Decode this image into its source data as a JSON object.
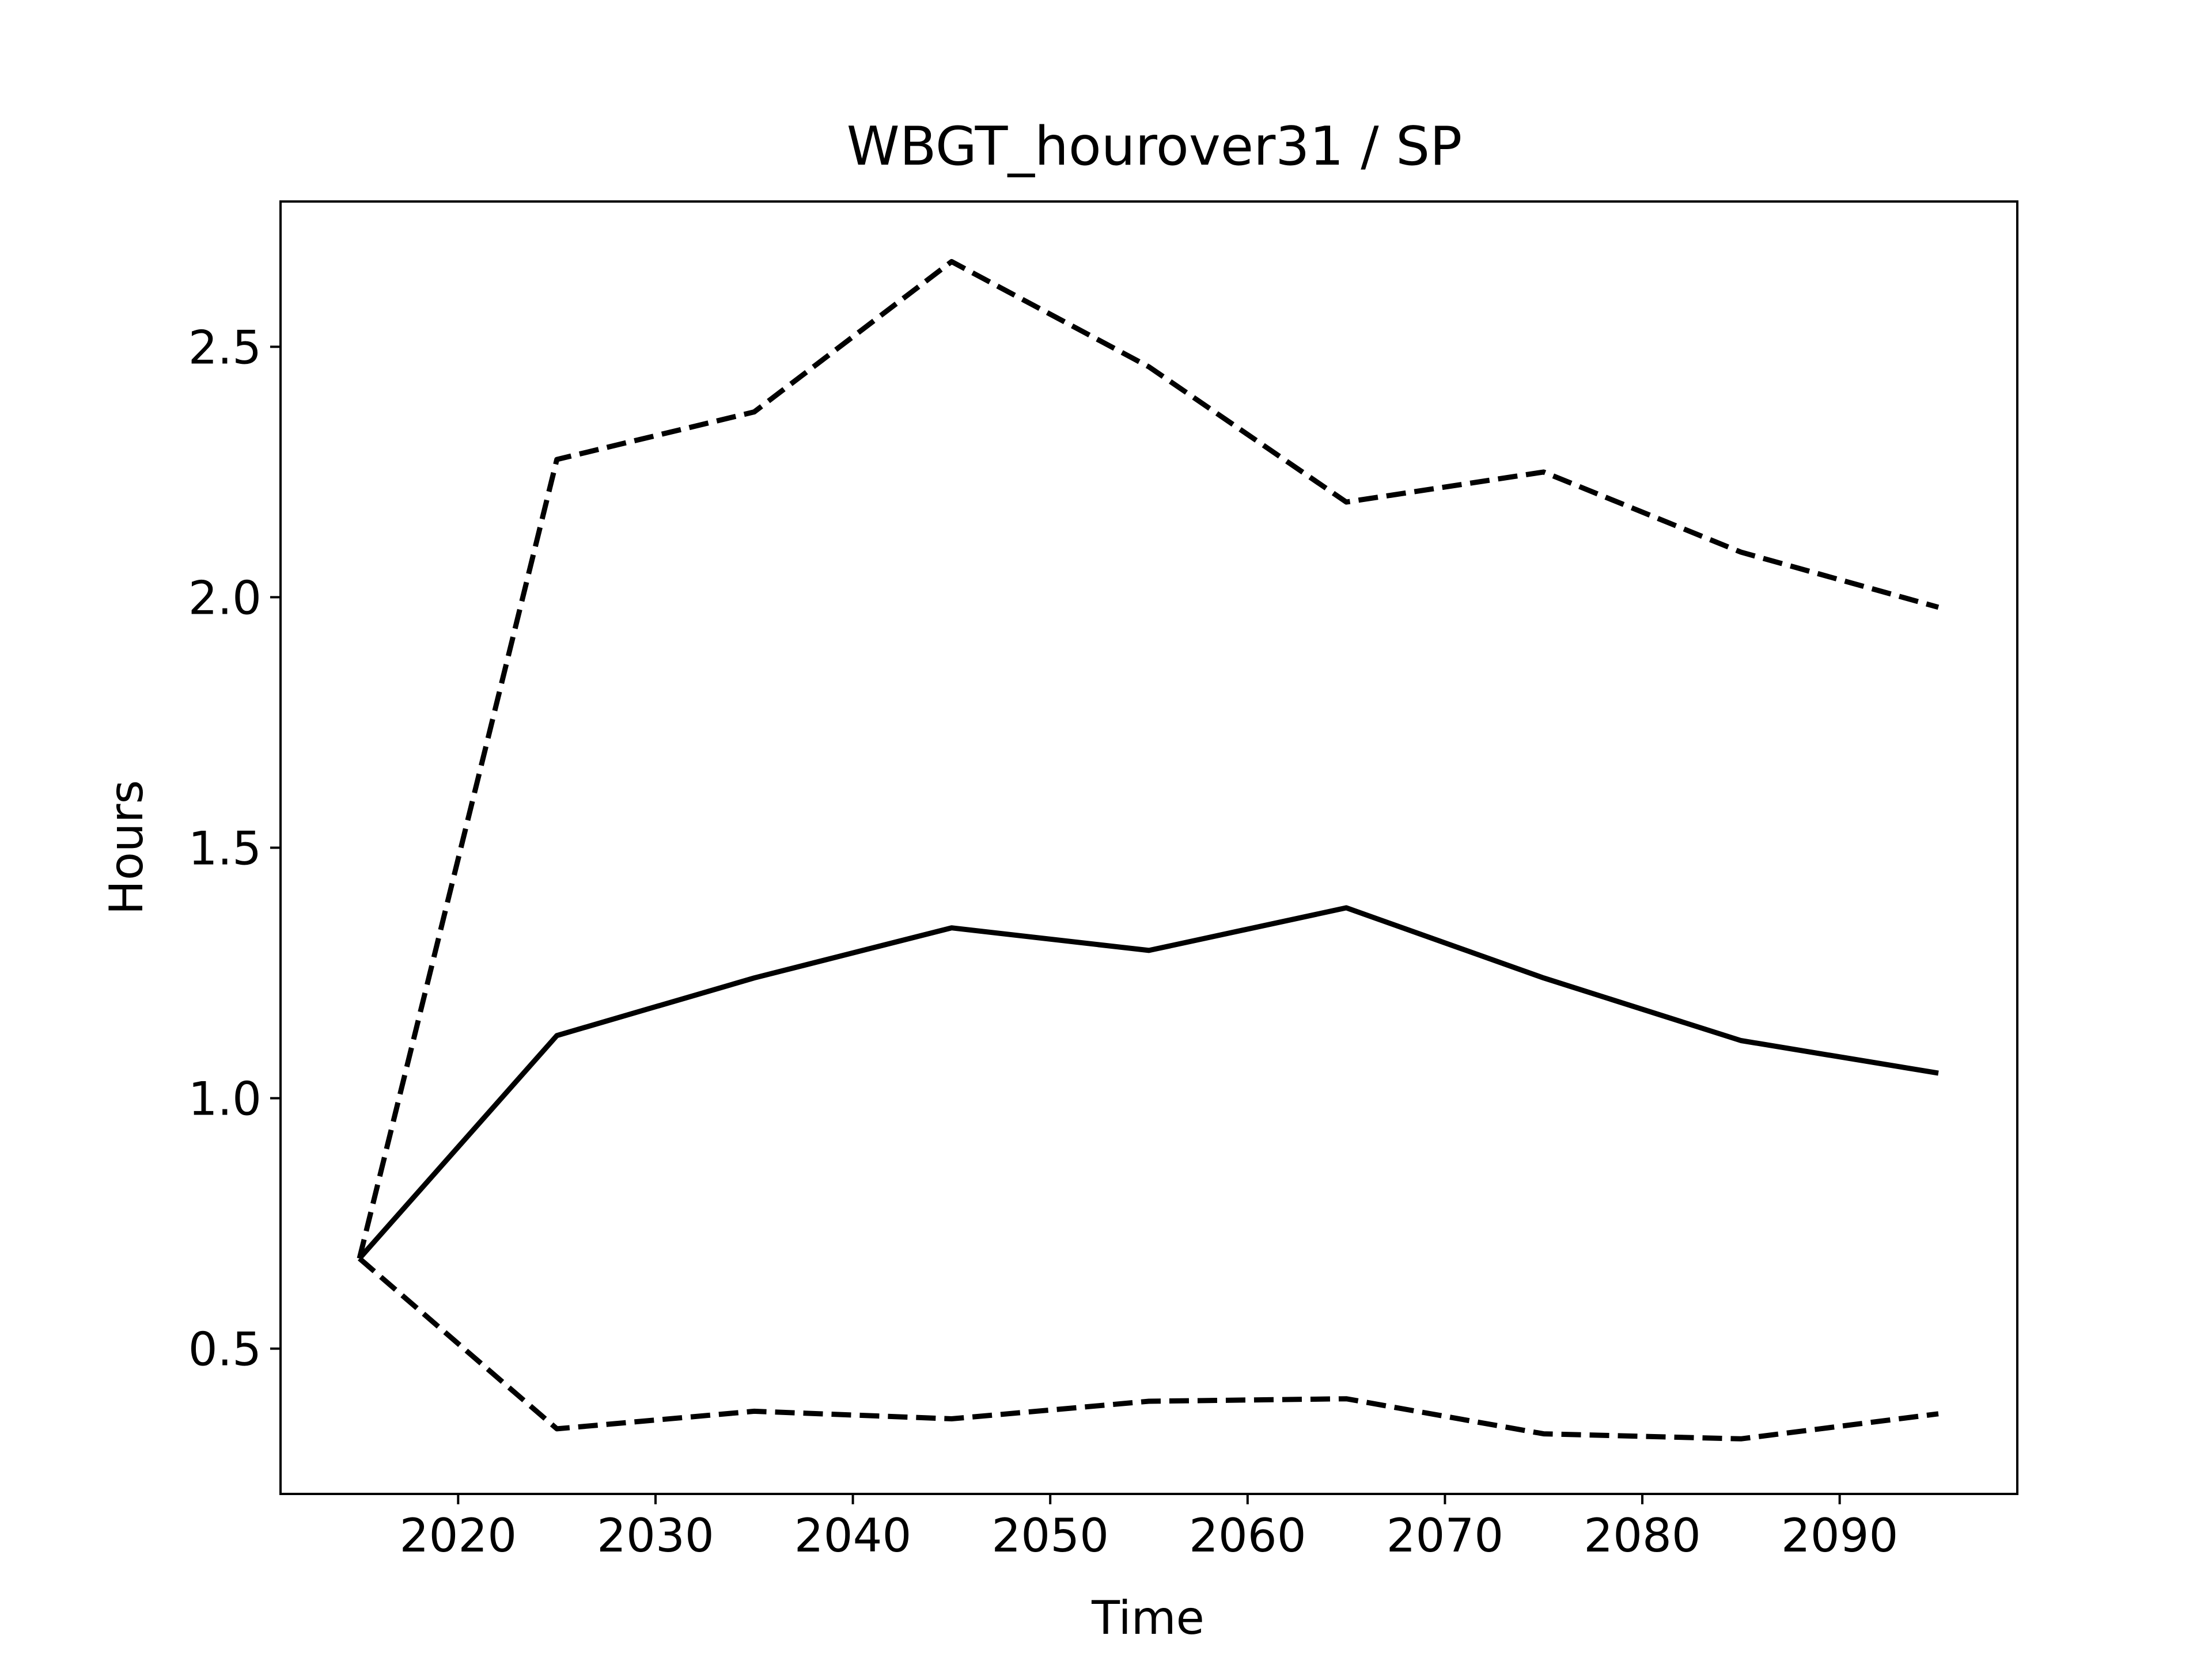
{
  "chart_data": {
    "type": "line",
    "title": "WBGT_hourover31 / SP",
    "xlabel": "Time",
    "ylabel": "Hours",
    "xlim": [
      2011,
      2099
    ],
    "ylim": [
      0.21,
      2.79
    ],
    "xticks": [
      2020,
      2030,
      2040,
      2050,
      2060,
      2070,
      2080,
      2090
    ],
    "xtick_labels": [
      "2020",
      "2030",
      "2040",
      "2050",
      "2060",
      "2070",
      "2080",
      "2090"
    ],
    "yticks": [
      0.5,
      1.0,
      1.5,
      2.0,
      2.5
    ],
    "ytick_labels": [
      "0.5",
      "1.0",
      "1.5",
      "2.0",
      "2.5"
    ],
    "grid": false,
    "x": [
      2015,
      2025,
      2035,
      2045,
      2055,
      2065,
      2075,
      2085,
      2095
    ],
    "series": [
      {
        "style": "solid",
        "color": "#000000",
        "values": [
          0.68,
          1.125,
          1.24,
          1.34,
          1.295,
          1.38,
          1.24,
          1.115,
          1.05
        ]
      },
      {
        "style": "dashed",
        "color": "#000000",
        "values": [
          0.68,
          2.275,
          2.37,
          2.67,
          2.46,
          2.19,
          2.25,
          2.09,
          1.98
        ]
      },
      {
        "style": "dashed",
        "color": "#000000",
        "values": [
          0.68,
          0.34,
          0.375,
          0.36,
          0.395,
          0.4,
          0.33,
          0.32,
          0.37
        ]
      }
    ]
  }
}
